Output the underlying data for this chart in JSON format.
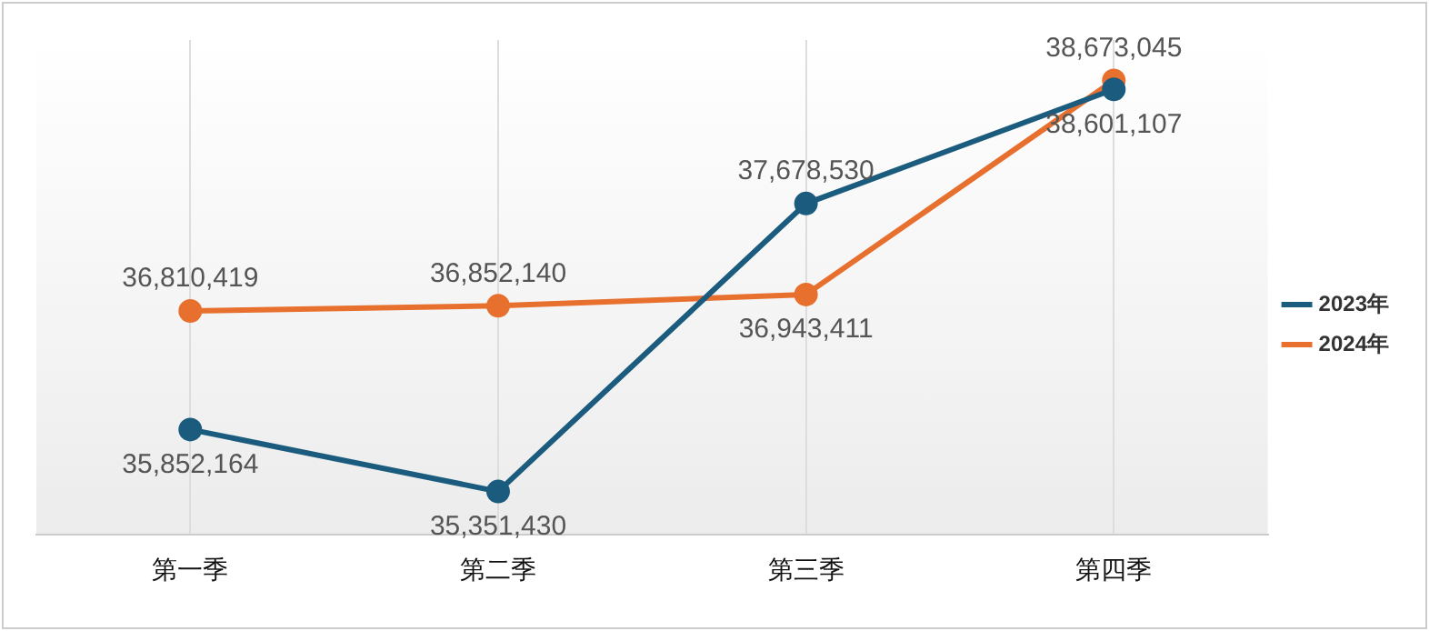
{
  "chart_data": {
    "type": "line",
    "categories": [
      "第一季",
      "第二季",
      "第三季",
      "第四季"
    ],
    "series": [
      {
        "name": "2023年",
        "color": "#1b5c7e",
        "values": [
          35852164,
          35351430,
          37678530,
          38601107
        ],
        "value_labels": [
          "35,852,164",
          "35,351,430",
          "37,678,530",
          "38,601,107"
        ]
      },
      {
        "name": "2024年",
        "color": "#e8702e",
        "values": [
          36810419,
          36852140,
          36943411,
          38673045
        ],
        "value_labels": [
          "36,810,419",
          "36,852,140",
          "36,943,411",
          "38,673,045"
        ]
      }
    ],
    "data_labels": true,
    "grid": "x",
    "legend": "right",
    "marker": "circle",
    "line_style": "solid"
  }
}
